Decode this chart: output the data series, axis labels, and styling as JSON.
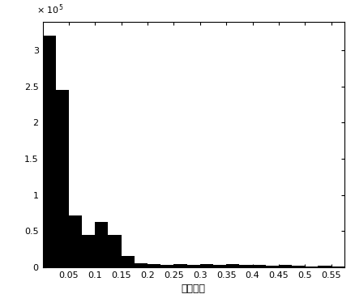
{
  "bar_edges": [
    0.0,
    0.025,
    0.05,
    0.075,
    0.1,
    0.125,
    0.15,
    0.175,
    0.2,
    0.225,
    0.25,
    0.275,
    0.3,
    0.325,
    0.35,
    0.375,
    0.4,
    0.425,
    0.45,
    0.475,
    0.5,
    0.525,
    0.55,
    0.575
  ],
  "bar_heights": [
    320000,
    245000,
    72000,
    45000,
    62000,
    45000,
    15000,
    5000,
    4000,
    3500,
    4000,
    3000,
    4000,
    3000,
    4500,
    3000,
    3500,
    2000,
    3000,
    1500,
    500,
    1500,
    1000
  ],
  "bar_color": "#000000",
  "xlim": [
    0.0,
    0.575
  ],
  "ylim": [
    0,
    340000
  ],
  "ytick_values": [
    0,
    0.5,
    1.0,
    1.5,
    2.0,
    2.5,
    3.0
  ],
  "ytick_scale": 100000,
  "xtick_values": [
    0.05,
    0.1,
    0.15,
    0.2,
    0.25,
    0.3,
    0.35,
    0.4,
    0.45,
    0.5,
    0.55
  ],
  "xlabel": "相对运动",
  "background_color": "#ffffff",
  "figsize": [
    4.38,
    3.79
  ],
  "dpi": 100
}
